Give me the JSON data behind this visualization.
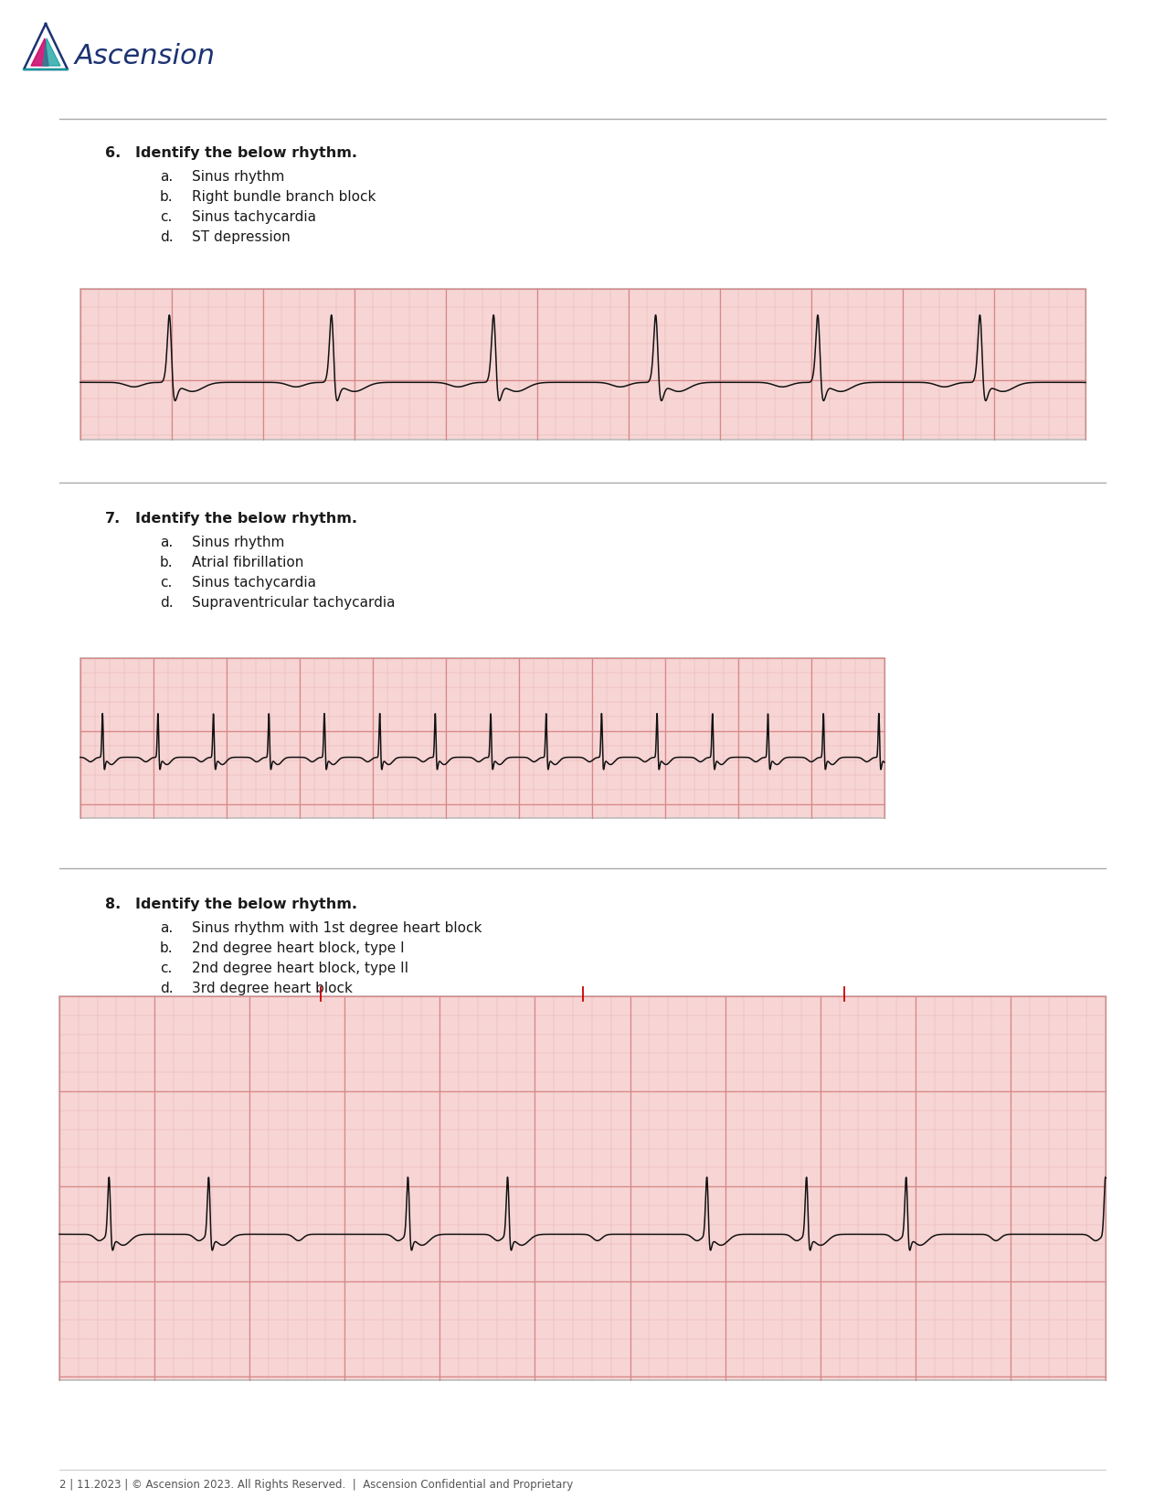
{
  "bg_color": "#ffffff",
  "header_logo_text": "Ascension",
  "separator_color": "#aaaaaa",
  "section6": {
    "number": "6.",
    "question": "Identify the below rhythm.",
    "options": [
      {
        "letter": "a.",
        "text": "Sinus rhythm"
      },
      {
        "letter": "b.",
        "text": "Right bundle branch block"
      },
      {
        "letter": "c.",
        "text": "Sinus tachycardia"
      },
      {
        "letter": "d.",
        "text": "ST depression"
      }
    ]
  },
  "section7": {
    "number": "7.",
    "question": "Identify the below rhythm.",
    "options": [
      {
        "letter": "a.",
        "text": "Sinus rhythm"
      },
      {
        "letter": "b.",
        "text": "Atrial fibrillation"
      },
      {
        "letter": "c.",
        "text": "Sinus tachycardia"
      },
      {
        "letter": "d.",
        "text": "Supraventricular tachycardia"
      }
    ]
  },
  "section8": {
    "number": "8.",
    "question": "Identify the below rhythm.",
    "options": [
      {
        "letter": "a.",
        "text": "Sinus rhythm with 1st degree heart block"
      },
      {
        "letter": "b.",
        "text": "2nd degree heart block, type I"
      },
      {
        "letter": "c.",
        "text": "2nd degree heart block, type II"
      },
      {
        "letter": "d.",
        "text": "3rd degree heart block"
      }
    ]
  },
  "footer_text": "2 | 11.2023 | © Ascension 2023. All Rights Reserved.  |  Ascension Confidential and Proprietary",
  "ecg6_bg": "#f7d5d5",
  "ecg7_bg": "#f7d5d5",
  "ecg8_bg": "#f7d5d5",
  "ecg_grid_minor": "#e8b0b0",
  "ecg_grid_major": "#d88888",
  "ecg_line_color": "#111111",
  "box_border_color": "#bbbbbb",
  "question_fontsize": 11.5,
  "option_fontsize": 11,
  "number_fontsize": 11.5,
  "footer_fontsize": 8.5,
  "text_color": "#1a1a1a",
  "logo_blue": "#1c3272",
  "logo_pink": "#cc0066",
  "logo_teal": "#009999",
  "logo_green": "#006633"
}
